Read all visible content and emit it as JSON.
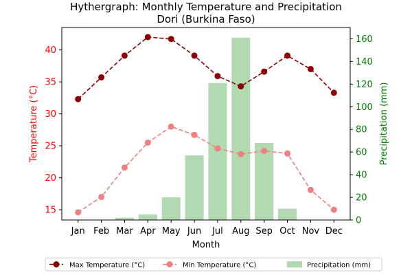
{
  "chart_data": {
    "type": "bar+line",
    "title": "Hythergraph: Monthly Temperature and Precipitation",
    "subtitle": "Dori (Burkina Faso)",
    "xlabel": "Month",
    "ylabel_left": "Temperature (°C)",
    "ylabel_right": "Precipitation (mm)",
    "categories": [
      "Jan",
      "Feb",
      "Mar",
      "Apr",
      "May",
      "Jun",
      "Jul",
      "Aug",
      "Sep",
      "Oct",
      "Nov",
      "Dec"
    ],
    "ylim_left": [
      13.4,
      43.5
    ],
    "yticks_left": [
      15,
      20,
      25,
      30,
      35,
      40
    ],
    "ylim_right": [
      0,
      170
    ],
    "yticks_right": [
      0,
      20,
      40,
      60,
      80,
      100,
      120,
      140,
      160
    ],
    "series": [
      {
        "name": "Max Temperature (°C)",
        "kind": "line",
        "axis": "left",
        "color": "#8b0000",
        "values": [
          32.3,
          35.7,
          39.1,
          42.0,
          41.7,
          39.1,
          35.9,
          34.3,
          36.6,
          39.1,
          37.0,
          33.3
        ]
      },
      {
        "name": "Min Temperature (°C)",
        "kind": "line",
        "axis": "left",
        "color": "#f08080",
        "values": [
          14.6,
          17.0,
          21.6,
          25.5,
          28.0,
          26.7,
          24.6,
          23.7,
          24.2,
          23.8,
          18.1,
          15.0
        ]
      },
      {
        "name": "Precipitation (mm)",
        "kind": "bar",
        "axis": "right",
        "color": "#2ca02c",
        "values": [
          0,
          0,
          2,
          5,
          20,
          57,
          121,
          161,
          68,
          10,
          0,
          0
        ]
      }
    ],
    "legend": "bottom-center",
    "grid": false,
    "colors": {
      "left_axis": "#ff0000",
      "right_axis": "#008000",
      "bar_fill": "#b1dab1"
    }
  }
}
